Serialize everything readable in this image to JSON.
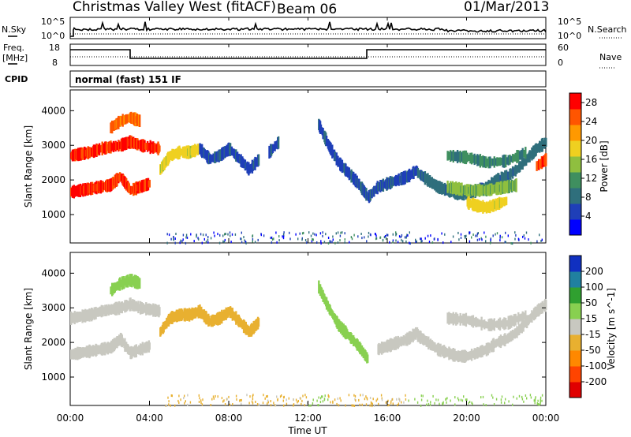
{
  "header": {
    "title": "Christmas Valley West (fitACF)",
    "beam": "Beam 06",
    "date": "01/Mar/2013"
  },
  "noise_panel": {
    "left_label": "N.Sky",
    "right_label": "N.Search",
    "left_ticks": [
      "10^5",
      "10^0"
    ],
    "right_ticks": [
      "10^5",
      "10^0"
    ]
  },
  "freq_panel": {
    "left_label_1": "Freq.",
    "left_label_2": "[MHz]",
    "right_label": "Nave",
    "left_ticks": [
      "18",
      "8"
    ],
    "right_ticks": [
      "60",
      "0"
    ]
  },
  "cpid": {
    "label": "CPID",
    "text": "normal (fast) 151 IF"
  },
  "x_axis": {
    "label": "Time UT",
    "ticks": [
      "00:00",
      "04:00",
      "08:00",
      "12:00",
      "16:00",
      "20:00",
      "00:00"
    ]
  },
  "colors": {
    "power": [
      "#0000ff",
      "#1f3fb8",
      "#2f6f7c",
      "#3f8f5f",
      "#8fbf3f",
      "#efd020",
      "#ff9900",
      "#ff5500",
      "#ff0000"
    ],
    "velocity": [
      "#e00000",
      "#ff4400",
      "#ff8800",
      "#e8b030",
      "#c8c8c0",
      "#88d050",
      "#30a030",
      "#2080a0",
      "#1030c0"
    ]
  },
  "chart_data": [
    {
      "type": "heatmap",
      "name": "Power",
      "ylabel": "Slant Range [km]",
      "xlabel": "",
      "xlim": [
        0,
        24
      ],
      "ylim": [
        180,
        4600
      ],
      "y_ticks": [
        1000,
        2000,
        3000,
        4000
      ],
      "colorbar_label": "Power [dB]",
      "colorbar_ticks": [
        4,
        8,
        12,
        16,
        20,
        24,
        28
      ],
      "colorbar_range": [
        0,
        30
      ],
      "series": [
        {
          "t": [
            0.0,
            0.5,
            1.0,
            1.5,
            2.0,
            2.5,
            3.0,
            3.5,
            4.0,
            4.5
          ],
          "y": [
            2700,
            2750,
            2800,
            2900,
            2950,
            3000,
            3100,
            3000,
            2950,
            2900
          ],
          "value": 27
        },
        {
          "t": [
            0.0,
            0.5,
            1.0,
            1.5,
            2.0,
            2.5,
            3.0,
            3.5,
            4.0
          ],
          "y": [
            1650,
            1700,
            1750,
            1800,
            1850,
            2100,
            1700,
            1800,
            1900
          ],
          "value": 27
        },
        {
          "t": [
            2.0,
            2.5,
            3.0,
            3.5
          ],
          "y": [
            3500,
            3700,
            3800,
            3700
          ],
          "value": 24
        },
        {
          "t": [
            4.5,
            5.0,
            5.5,
            6.0,
            6.5
          ],
          "y": [
            2300,
            2700,
            2800,
            2800,
            2900
          ],
          "value": 18
        },
        {
          "t": [
            6.5,
            7.0,
            7.5,
            8.0,
            8.5,
            9.0,
            9.5
          ],
          "y": [
            2900,
            2600,
            2700,
            2900,
            2600,
            2300,
            2600
          ],
          "value": 6
        },
        {
          "t": [
            10.0,
            10.5
          ],
          "y": [
            2800,
            3100
          ],
          "value": 6
        },
        {
          "t": [
            12.5,
            13.0,
            13.5,
            14.0,
            14.5,
            15.0,
            15.5,
            16.0,
            16.5,
            17.0,
            17.5
          ],
          "y": [
            3600,
            3000,
            2500,
            2200,
            1900,
            1500,
            1800,
            1900,
            2000,
            2100,
            2300
          ],
          "value": 6
        },
        {
          "t": [
            17.5,
            18.0,
            18.5,
            19.0,
            19.5,
            20.0,
            20.5,
            21.0,
            21.5,
            22.0,
            22.5,
            23.0,
            23.5,
            24.0
          ],
          "y": [
            2200,
            2000,
            1800,
            1700,
            1600,
            1600,
            1700,
            1800,
            2000,
            2100,
            2300,
            2600,
            2900,
            3100
          ],
          "value": 8
        },
        {
          "t": [
            19.0,
            19.5,
            20.0,
            20.5,
            21.0,
            21.5,
            22.0,
            22.5
          ],
          "y": [
            1800,
            1750,
            1700,
            1700,
            1700,
            1750,
            1800,
            1850
          ],
          "value": 14
        },
        {
          "t": [
            20.0,
            20.5,
            21.0,
            21.5,
            22.0
          ],
          "y": [
            1350,
            1250,
            1200,
            1300,
            1400
          ],
          "value": 18
        },
        {
          "t": [
            19.0,
            20.0,
            21.0,
            22.0,
            23.0
          ],
          "y": [
            2700,
            2650,
            2500,
            2550,
            2800
          ],
          "value": 10
        },
        {
          "t": [
            23.5,
            24.0
          ],
          "y": [
            2400,
            2600
          ],
          "value": 26
        }
      ]
    },
    {
      "type": "heatmap",
      "name": "Velocity",
      "ylabel": "Slant Range [km]",
      "xlabel": "Time UT",
      "xlim": [
        0,
        24
      ],
      "ylim": [
        180,
        4600
      ],
      "y_ticks": [
        1000,
        2000,
        3000,
        4000
      ],
      "colorbar_label": "Velocity [m s^-1]",
      "colorbar_ticks": [
        200,
        100,
        50,
        15,
        -15,
        -50,
        -100,
        -200
      ],
      "colorbar_range": [
        -250,
        250
      ],
      "series": [
        {
          "t": [
            0.0,
            0.5,
            1.0,
            1.5,
            2.0,
            2.5,
            3.0,
            3.5,
            4.0,
            4.5
          ],
          "y": [
            2700,
            2750,
            2800,
            2900,
            2950,
            3000,
            3100,
            3000,
            2950,
            2900
          ],
          "value": 0
        },
        {
          "t": [
            0.0,
            0.5,
            1.0,
            1.5,
            2.0,
            2.5,
            3.0,
            3.5,
            4.0
          ],
          "y": [
            1650,
            1700,
            1750,
            1800,
            1850,
            2100,
            1700,
            1800,
            1900
          ],
          "value": 0
        },
        {
          "t": [
            2.0,
            2.5,
            3.0,
            3.5
          ],
          "y": [
            3500,
            3700,
            3800,
            3700
          ],
          "value": 60
        },
        {
          "t": [
            4.5,
            5.0,
            5.5,
            6.0,
            6.5
          ],
          "y": [
            2300,
            2700,
            2800,
            2800,
            2900
          ],
          "value": -40
        },
        {
          "t": [
            6.5,
            7.0,
            7.5,
            8.0,
            8.5,
            9.0,
            9.5
          ],
          "y": [
            2900,
            2600,
            2700,
            2900,
            2600,
            2300,
            2600
          ],
          "value": -30
        },
        {
          "t": [
            12.5,
            13.0,
            13.5,
            14.0,
            14.5,
            15.0
          ],
          "y": [
            3600,
            3000,
            2500,
            2200,
            1900,
            1500
          ],
          "value": 70
        },
        {
          "t": [
            15.5,
            16.0,
            16.5,
            17.0,
            17.5
          ],
          "y": [
            1800,
            1900,
            2000,
            2100,
            2300
          ],
          "value": 0
        },
        {
          "t": [
            17.5,
            18.0,
            18.5,
            19.0,
            19.5,
            20.0,
            20.5,
            21.0,
            21.5,
            22.0,
            22.5,
            23.0,
            23.5,
            24.0
          ],
          "y": [
            2200,
            2000,
            1800,
            1700,
            1600,
            1600,
            1700,
            1800,
            2000,
            2100,
            2300,
            2600,
            2900,
            3100
          ],
          "value": 0
        },
        {
          "t": [
            19.0,
            20.0,
            21.0,
            22.0,
            23.0
          ],
          "y": [
            2700,
            2650,
            2500,
            2550,
            2800
          ],
          "value": 0
        }
      ]
    }
  ]
}
